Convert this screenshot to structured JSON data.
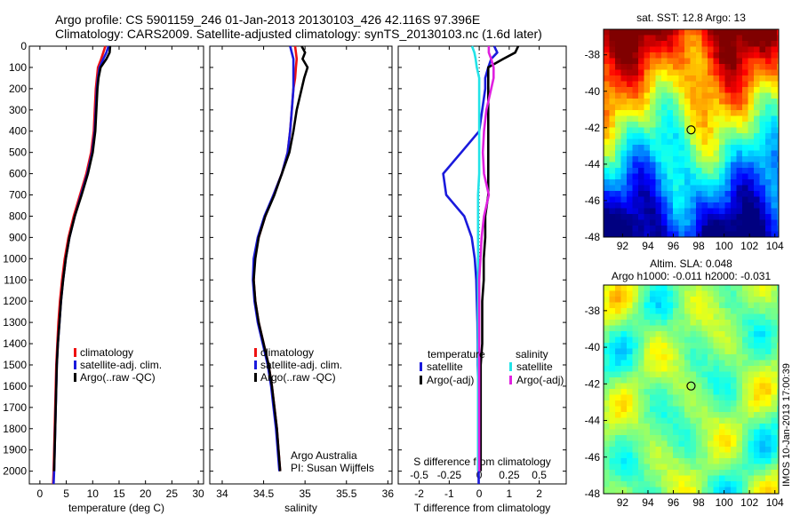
{
  "figure": {
    "title_line1": "Argo profile: CS 5901159_246 01-Jan-2013 20130103_426 42.116S 97.396E",
    "title_line2": "Climatology: CARS2009. Satellite-adjusted climatology: synTS_20130103.nc (1.6d later)",
    "footer_stamp": "IMOS 10-Jan-2013 17:00:39",
    "attribution_line1": "Argo Australia",
    "attribution_line2": "PI: Susan Wijffels"
  },
  "colors": {
    "climatology": "#ee1111",
    "satellite": "#1a1adc",
    "argo": "#000000",
    "satellite_salinity": "#22e3e8",
    "argo_adj_salinity": "#e020e0"
  },
  "depth_ticks": [
    "0",
    "100",
    "200",
    "300",
    "400",
    "500",
    "600",
    "700",
    "800",
    "900",
    "1000",
    "1100",
    "1200",
    "1300",
    "1400",
    "1500",
    "1600",
    "1700",
    "1800",
    "1900",
    "2000"
  ],
  "chart_data": [
    {
      "id": "temperature",
      "type": "line",
      "xlabel": "temperature (deg C)",
      "ylabel": "",
      "xlim": [
        -2,
        31
      ],
      "ylim": [
        2060,
        0
      ],
      "y_reversed": true,
      "xticks": [
        0,
        5,
        10,
        15,
        20,
        25,
        30
      ],
      "xtick_labels": [
        "0",
        "5",
        "10",
        "15",
        "20",
        "25",
        "30"
      ],
      "legend": {
        "placement": "lower-middle",
        "entries": [
          "climatology",
          "satellite-adj. clim.",
          "Argo(..raw -QC)"
        ]
      },
      "series": [
        {
          "name": "climatology",
          "color_key": "climatology",
          "depth": [
            0,
            30,
            60,
            100,
            150,
            200,
            300,
            400,
            500,
            600,
            700,
            800,
            900,
            1000,
            1100,
            1200,
            1300,
            1400,
            1500,
            1600,
            1700,
            1800,
            1900,
            2000,
            2060
          ],
          "values": [
            12.4,
            12.0,
            11.6,
            11.0,
            10.8,
            10.6,
            10.4,
            10.2,
            9.7,
            8.8,
            7.6,
            6.4,
            5.4,
            4.7,
            4.2,
            3.8,
            3.5,
            3.3,
            3.1,
            3.0,
            2.9,
            2.8,
            2.7,
            2.6,
            2.5
          ]
        },
        {
          "name": "satellite-adj. clim.",
          "color_key": "satellite",
          "depth": [
            0,
            30,
            60,
            100,
            150,
            200,
            300,
            400,
            500,
            600,
            700,
            800,
            900,
            1000,
            1100,
            1200,
            1300,
            1400,
            1500,
            1600,
            1700,
            1800,
            1900,
            2000,
            2060
          ],
          "values": [
            13.0,
            12.6,
            12.0,
            11.3,
            11.0,
            10.8,
            10.6,
            10.4,
            9.9,
            9.0,
            7.8,
            6.6,
            5.6,
            4.9,
            4.4,
            4.0,
            3.7,
            3.4,
            3.2,
            3.1,
            3.0,
            2.9,
            2.8,
            2.7,
            2.6
          ]
        },
        {
          "name": "Argo(..raw -QC)",
          "color_key": "argo",
          "depth": [
            0,
            30,
            60,
            100,
            150,
            200,
            300,
            400,
            500,
            600,
            700,
            800,
            900,
            1000,
            1100,
            1200,
            1300,
            1400,
            1500,
            1600,
            1700,
            1800,
            1900,
            2000
          ],
          "values": [
            13.3,
            13.2,
            12.6,
            11.5,
            11.1,
            10.9,
            10.7,
            10.5,
            10.0,
            9.1,
            7.9,
            6.6,
            5.6,
            4.9,
            4.4,
            4.0,
            3.7,
            3.4,
            3.2,
            3.1,
            3.0,
            2.9,
            2.8,
            2.7
          ]
        }
      ]
    },
    {
      "id": "salinity",
      "type": "line",
      "xlabel": "salinity",
      "ylabel": "",
      "xlim": [
        33.85,
        36.05
      ],
      "ylim": [
        2060,
        0
      ],
      "y_reversed": true,
      "xticks": [
        34,
        34.5,
        35,
        35.5,
        36
      ],
      "xtick_labels": [
        "34",
        "34.5",
        "35",
        "35.5",
        "36"
      ],
      "legend": {
        "placement": "lower-middle",
        "entries": [
          "climatology",
          "satellite-adj. clim.",
          "Argo(..raw -QC)"
        ]
      },
      "series": [
        {
          "name": "climatology",
          "color_key": "climatology",
          "depth": [
            0,
            60,
            100,
            150,
            200,
            300,
            400,
            500,
            600,
            700,
            800,
            900,
            1000,
            1100,
            1200,
            1300,
            1400,
            1500,
            1600,
            1700,
            1800,
            1900,
            2000
          ],
          "values": [
            34.88,
            34.9,
            34.89,
            34.88,
            34.86,
            34.84,
            34.82,
            34.79,
            34.72,
            34.62,
            34.52,
            34.44,
            34.39,
            34.38,
            34.4,
            34.44,
            34.5,
            34.56,
            34.6,
            34.63,
            34.66,
            34.68,
            34.7
          ]
        },
        {
          "name": "satellite-adj. clim.",
          "color_key": "satellite",
          "depth": [
            0,
            60,
            100,
            150,
            200,
            300,
            400,
            500,
            600,
            700,
            800,
            900,
            1000,
            1100,
            1200,
            1300,
            1400,
            1500,
            1600,
            1700,
            1800,
            1900,
            2000
          ],
          "values": [
            34.82,
            34.86,
            34.86,
            34.86,
            34.86,
            34.84,
            34.82,
            34.79,
            34.72,
            34.62,
            34.51,
            34.43,
            34.38,
            34.37,
            34.39,
            34.43,
            34.49,
            34.55,
            34.59,
            34.62,
            34.65,
            34.67,
            34.69
          ]
        },
        {
          "name": "Argo(..raw -QC)",
          "color_key": "argo",
          "depth": [
            0,
            30,
            60,
            100,
            150,
            200,
            300,
            400,
            500,
            600,
            700,
            800,
            900,
            1000,
            1100,
            1200,
            1300,
            1400,
            1500,
            1600,
            1700,
            1800,
            1900,
            2000
          ],
          "values": [
            34.96,
            35.0,
            34.97,
            35.03,
            34.99,
            34.96,
            34.9,
            34.86,
            34.81,
            34.72,
            34.63,
            34.52,
            34.44,
            34.4,
            34.38,
            34.4,
            34.44,
            34.5,
            34.56,
            34.6,
            34.63,
            34.66,
            34.68,
            34.7
          ]
        }
      ]
    },
    {
      "id": "difference",
      "type": "line",
      "xlabel": "T difference from climatology",
      "xlabel_top": "S difference from climatology",
      "ylabel": "",
      "xlim": [
        -2.7,
        2.9
      ],
      "ylim": [
        2060,
        0
      ],
      "y_reversed": true,
      "xticks": [
        -2,
        -1,
        0,
        1,
        2
      ],
      "xtick_labels": [
        "-2",
        "-1",
        "0",
        "1",
        "2"
      ],
      "s_xticks": [
        -0.5,
        -0.25,
        0,
        0.25,
        0.5
      ],
      "s_xtick_labels": [
        "-0.5",
        "-0.25",
        "0",
        "0.25",
        "0.5"
      ],
      "s_scale": 4,
      "legend": {
        "placement": "lower-middle",
        "temperature_heading": "temperature",
        "salinity_heading": "salinity",
        "entries": [
          "satellite",
          "Argo(-adj)",
          "satellite",
          "Argo(-adj)"
        ]
      },
      "series": [
        {
          "name": "satellite",
          "quantity": "temperature",
          "color_key": "satellite",
          "depth": [
            0,
            30,
            60,
            100,
            150,
            200,
            300,
            400,
            500,
            600,
            700,
            800,
            900,
            1000,
            1100,
            1200,
            1300,
            1400,
            1500,
            1600,
            1700,
            1800,
            1900,
            2000,
            2060
          ],
          "values": [
            0.5,
            0.6,
            0.4,
            0.3,
            0.2,
            0.2,
            0.1,
            0.0,
            -0.6,
            -1.2,
            -1.1,
            -0.5,
            -0.25,
            -0.15,
            -0.1,
            -0.08,
            -0.06,
            -0.05,
            -0.05,
            -0.03,
            -0.02,
            -0.02,
            -0.02,
            -0.02,
            -0.02
          ]
        },
        {
          "name": "Argo(-adj)",
          "quantity": "temperature",
          "color_key": "argo",
          "depth": [
            0,
            30,
            60,
            100,
            150,
            200,
            300,
            400,
            500,
            600,
            700,
            800,
            900,
            1000,
            1100,
            1200,
            1300,
            1400,
            1500,
            1600,
            1700,
            1800,
            1900,
            2000
          ],
          "values": [
            1.3,
            1.2,
            0.8,
            0.3,
            0.3,
            0.3,
            0.3,
            0.3,
            0.3,
            0.3,
            0.3,
            0.2,
            0.2,
            0.15,
            0.15,
            0.1,
            0.1,
            0.1,
            0.05,
            0.05,
            0.05,
            0.05,
            0.05,
            0.05
          ]
        },
        {
          "name": "satellite",
          "quantity": "salinity",
          "color_key": "satellite_salinity",
          "depth": [
            0,
            30,
            60,
            100,
            150,
            200,
            300,
            400,
            500,
            600,
            700,
            800,
            900,
            1000,
            1100,
            1200,
            1300,
            1400,
            1500,
            1600,
            1700,
            1800,
            1900,
            2000
          ],
          "values": [
            -0.06,
            -0.04,
            -0.03,
            -0.02,
            0.0,
            0.0,
            0.0,
            0.0,
            0.0,
            0.0,
            -0.01,
            -0.01,
            -0.01,
            -0.01,
            -0.01,
            -0.01,
            -0.01,
            -0.01,
            -0.01,
            -0.01,
            -0.01,
            -0.01,
            -0.01,
            -0.01
          ]
        },
        {
          "name": "Argo(-adj)",
          "quantity": "salinity",
          "color_key": "argo_adj_salinity",
          "depth": [
            0,
            30,
            60,
            100,
            150,
            200,
            300,
            400,
            500,
            600,
            700,
            800,
            900,
            1000,
            1100,
            1200,
            1300,
            1400,
            1500,
            1600,
            1700,
            1800,
            1900,
            2000
          ],
          "values": [
            0.08,
            0.08,
            0.1,
            0.12,
            0.12,
            0.1,
            0.06,
            0.04,
            0.03,
            0.04,
            0.08,
            0.04,
            0.02,
            0.01,
            0.0,
            0.0,
            0.0,
            0.0,
            0.0,
            0.0,
            0.0,
            0.0,
            0.0,
            0.0
          ]
        }
      ]
    },
    {
      "id": "sst_map",
      "type": "heatmap",
      "title": "sat. SST: 12.8  Argo: 13",
      "xlim": [
        90.5,
        104.3
      ],
      "ylim": [
        -48,
        -36.6
      ],
      "xticks": [
        92,
        94,
        96,
        98,
        100,
        102,
        104
      ],
      "xtick_labels": [
        "92",
        "94",
        "96",
        "98",
        "100",
        "102",
        "104"
      ],
      "yticks": [
        -38,
        -40,
        -42,
        -44,
        -46,
        -48
      ],
      "ytick_labels": [
        "-38",
        "-40",
        "-42",
        "-44",
        "-46",
        "-48"
      ],
      "marker": {
        "lon": 97.396,
        "lat": -42.116
      },
      "satellite_sst": 12.8,
      "argo_sst": 13,
      "colormap": "jet"
    },
    {
      "id": "sla_map",
      "type": "heatmap",
      "title_line1": "Altim. SLA: 0.048",
      "title_line2": "Argo h1000: -0.011  h2000: -0.031",
      "xlim": [
        90.5,
        104.3
      ],
      "ylim": [
        -48,
        -36.6
      ],
      "xticks": [
        92,
        94,
        96,
        98,
        100,
        102,
        104
      ],
      "xtick_labels": [
        "92",
        "94",
        "96",
        "98",
        "100",
        "102",
        "104"
      ],
      "yticks": [
        -38,
        -40,
        -42,
        -44,
        -46,
        -48
      ],
      "ytick_labels": [
        "-38",
        "-40",
        "-42",
        "-44",
        "-46",
        "-48"
      ],
      "marker": {
        "lon": 97.396,
        "lat": -42.116
      },
      "altim_sla": 0.048,
      "argo_h1000": -0.011,
      "argo_h2000": -0.031,
      "colormap": "jet"
    }
  ]
}
